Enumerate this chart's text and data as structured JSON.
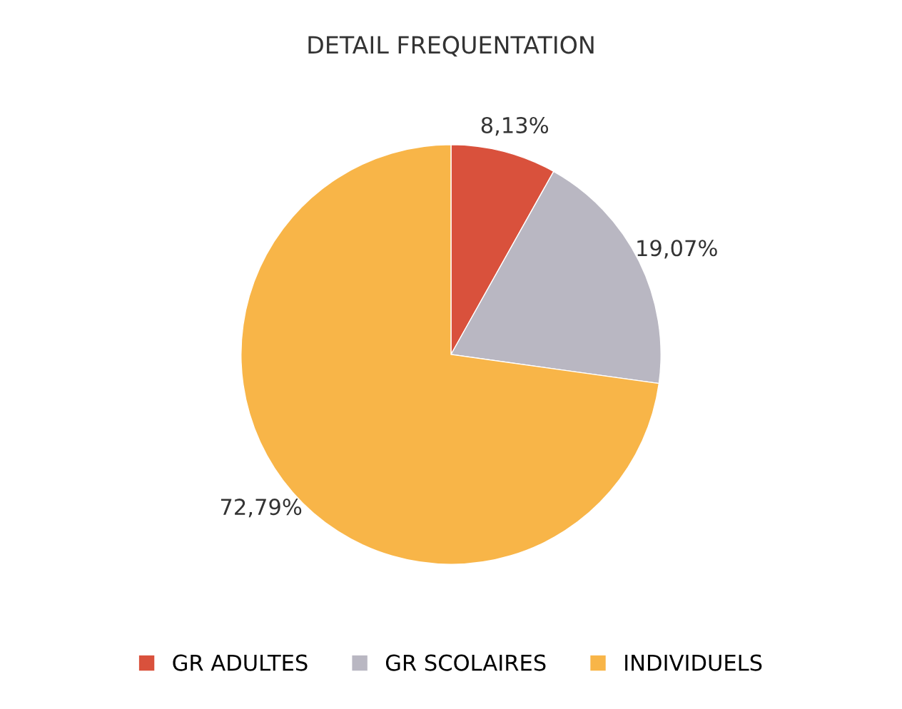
{
  "chart_data": {
    "type": "pie",
    "title": "DETAIL FREQUENTATION",
    "categories": [
      "GR ADULTES",
      "GR SCOLAIRES",
      "INDIVIDUELS"
    ],
    "values": [
      8.13,
      19.07,
      72.79
    ],
    "colors": [
      "#d9513c",
      "#b9b7c2",
      "#f8b548"
    ],
    "value_labels": [
      "8,13%",
      "19,07%",
      "72,79%"
    ],
    "legend": "bottom"
  }
}
